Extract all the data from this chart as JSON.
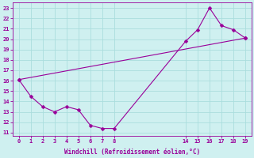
{
  "xlabel": "Windchill (Refroidissement éolien,°C)",
  "background_color": "#cff0f0",
  "grid_color": "#aadddd",
  "line_color": "#990099",
  "xtick_labels": [
    0,
    1,
    2,
    3,
    4,
    5,
    6,
    7,
    8,
    14,
    15,
    16,
    17,
    18,
    19
  ],
  "xtick_positions": [
    0,
    1,
    2,
    3,
    4,
    5,
    6,
    7,
    8,
    14,
    15,
    16,
    17,
    18,
    19
  ],
  "line1_xvals": [
    0,
    1,
    2,
    3,
    4,
    5,
    6,
    7,
    8,
    14,
    15,
    16,
    17,
    18,
    19
  ],
  "line1_y": [
    16.1,
    14.5,
    13.5,
    13.0,
    13.5,
    13.2,
    11.7,
    11.4,
    11.4,
    19.8,
    20.9,
    23.0,
    21.3,
    20.9,
    20.1
  ],
  "line2_xvals": [
    0,
    19
  ],
  "line2_y": [
    16.1,
    20.1
  ],
  "yticks": [
    11,
    12,
    13,
    14,
    15,
    16,
    17,
    18,
    19,
    20,
    21,
    22,
    23
  ],
  "xlim": [
    -0.5,
    19.5
  ],
  "ylim": [
    10.7,
    23.5
  ],
  "marker_size": 2.5,
  "line_width": 0.8
}
